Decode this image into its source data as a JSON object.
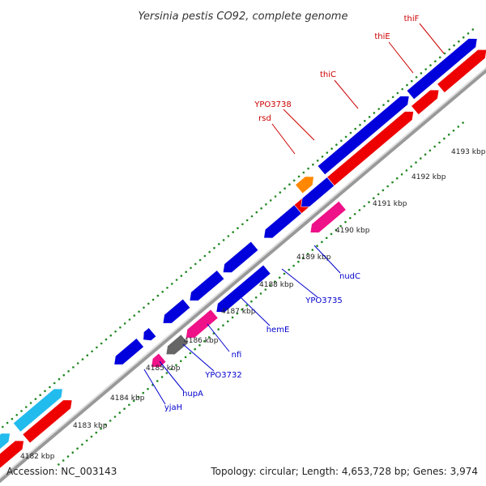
{
  "title": "Yersinia pestis CO92, complete genome",
  "footer": {
    "accession": "Accession: NC_003143",
    "summary": "Topology: circular; Length: 4,653,728 bp; Genes: 3,974"
  },
  "colors": {
    "blue": "#0000dd",
    "red": "#ee0000",
    "magenta": "#ee1188",
    "orange": "#ff8800",
    "gray": "#666666",
    "cyan": "#22bbee",
    "tick": "#228822",
    "backbone": "#aaaaaa",
    "label_red": "#cc0000",
    "label_blue": "#0000cc"
  },
  "ticks": [
    {
      "label": "4182 kbp"
    },
    {
      "label": "4183 kbp"
    },
    {
      "label": "4184 kbp"
    },
    {
      "label": "4185 kbp"
    },
    {
      "label": "4186 kbp"
    },
    {
      "label": "4187 kbp"
    },
    {
      "label": "4188 kbp"
    },
    {
      "label": "4189 kbp"
    },
    {
      "label": "4190 kbp"
    },
    {
      "label": "4191 kbp"
    },
    {
      "label": "4192 kbp"
    },
    {
      "label": "4193 kbp"
    }
  ],
  "labels_top": [
    {
      "text": "thiF"
    },
    {
      "text": "thiE"
    },
    {
      "text": "thiC"
    },
    {
      "text": "YPO3738"
    },
    {
      "text": "rsd"
    }
  ],
  "labels_bottom": [
    {
      "text": "nudC"
    },
    {
      "text": "YPO3735"
    },
    {
      "text": "hemE"
    },
    {
      "text": "nfi"
    },
    {
      "text": "YPO3732"
    },
    {
      "text": "hupA"
    },
    {
      "text": "yjaH"
    }
  ]
}
